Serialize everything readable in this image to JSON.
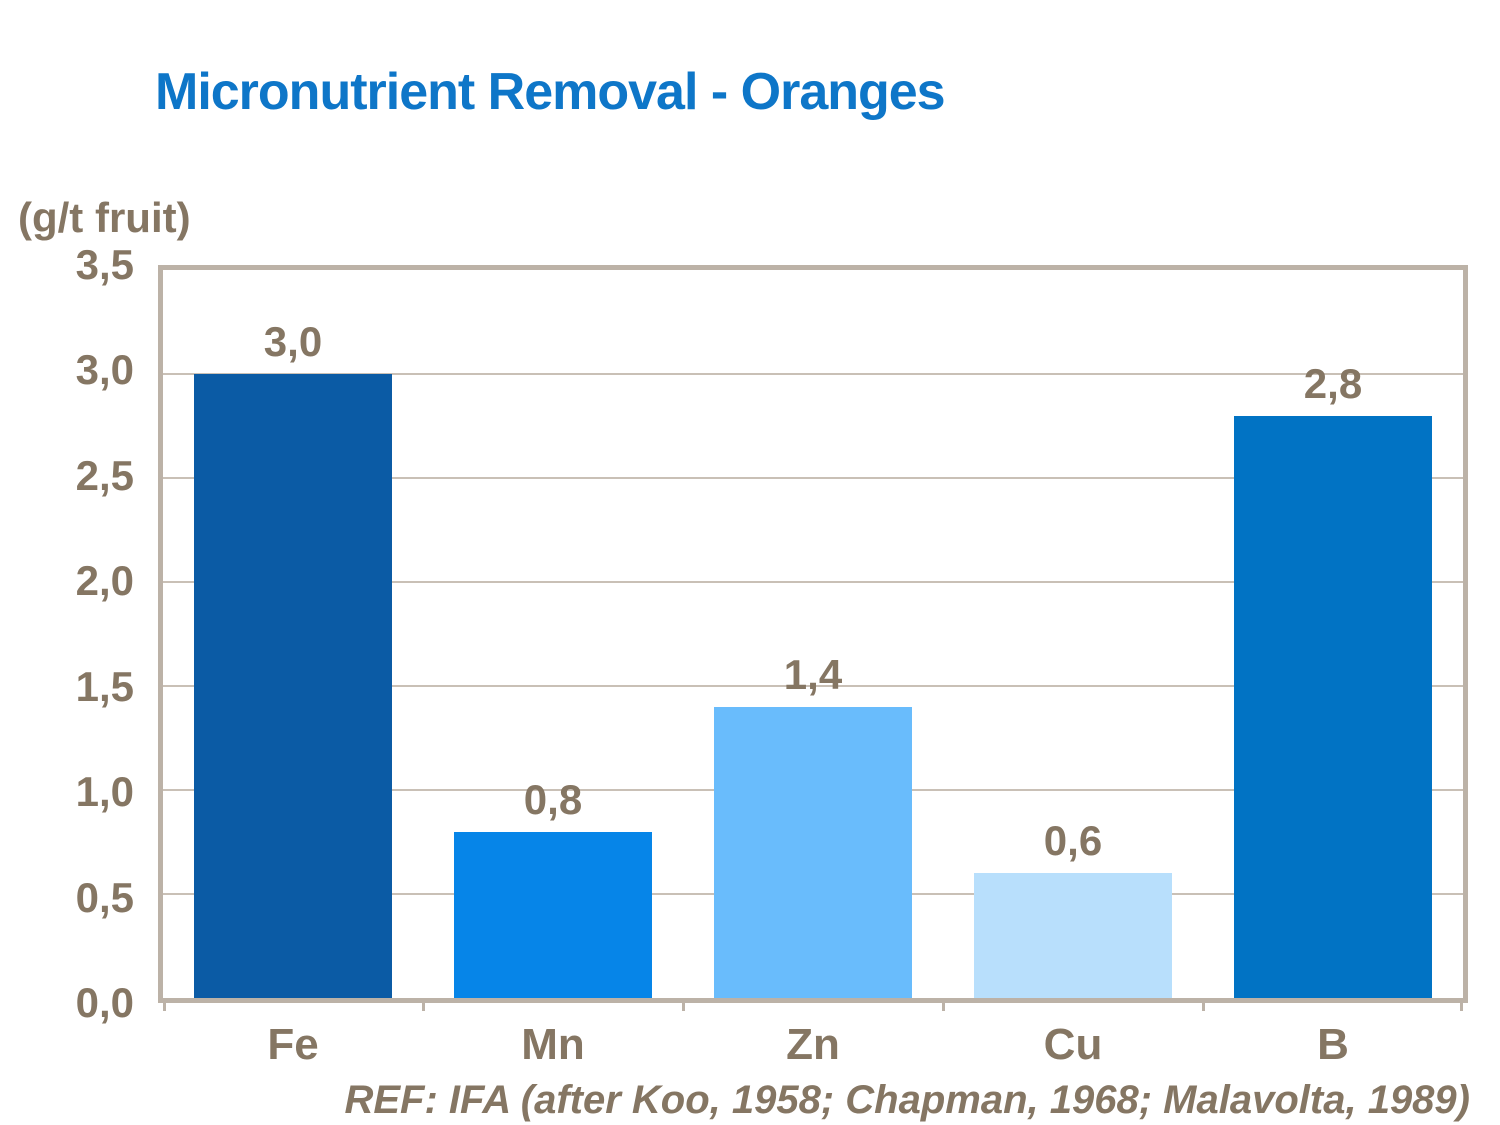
{
  "chart_data": {
    "type": "bar",
    "title": "Micronutrient Removal - Oranges",
    "ylabel": "(g/t fruit)",
    "xlabel": "",
    "categories": [
      "Fe",
      "Mn",
      "Zn",
      "Cu",
      "B"
    ],
    "values": [
      3.0,
      0.8,
      1.4,
      0.6,
      2.8
    ],
    "value_labels": [
      "3,0",
      "0,8",
      "1,4",
      "0,6",
      "2,8"
    ],
    "y_ticks": [
      "3,5",
      "3,0",
      "2,5",
      "2,0",
      "1,5",
      "1,0",
      "0,5",
      "0,0"
    ],
    "ylim": [
      0,
      3.5
    ],
    "grid": true,
    "legend_position": "none",
    "bar_colors": [
      "#0B5BA5",
      "#0685E8",
      "#69BCFC",
      "#B8DFFC",
      "#0173C4"
    ],
    "colors": {
      "title": "#0E76C8",
      "text": "#857663",
      "axis_border": "#BCB2A7",
      "gridline": "#C9C0B6",
      "background": "#FFFFFF"
    },
    "annotation": "REF: IFA (after Koo, 1958; Chapman, 1968; Malavolta, 1989)"
  }
}
